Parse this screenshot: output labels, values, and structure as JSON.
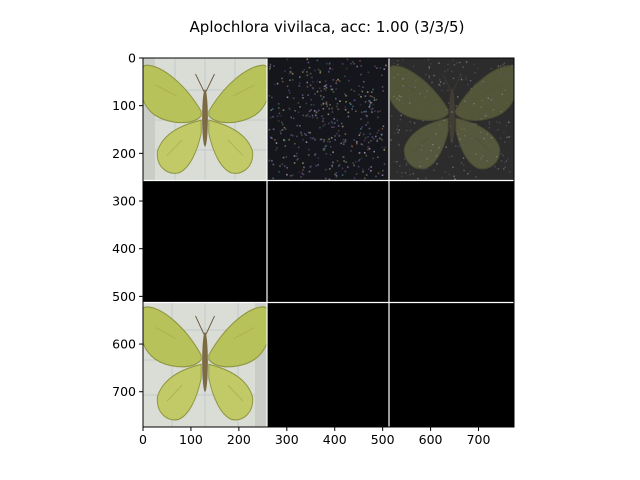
{
  "chart_data": {
    "type": "image-grid",
    "title": "Aplochlora vivilaca, acc: 1.00 (3/3/5)",
    "xlabel": "",
    "ylabel": "",
    "xlim": [
      0,
      774
    ],
    "ylim": [
      774,
      0
    ],
    "xticks": [
      0,
      100,
      200,
      300,
      400,
      500,
      600,
      700
    ],
    "yticks": [
      0,
      100,
      200,
      300,
      400,
      500,
      600,
      700
    ],
    "grid": {
      "rows": 3,
      "cols": 3,
      "cell_size": 256,
      "separator": 2,
      "separator_color": "#ffffff"
    },
    "tiles": [
      {
        "row": 0,
        "col": 0,
        "content": "butterfly-photo"
      },
      {
        "row": 0,
        "col": 1,
        "content": "noise-attribution"
      },
      {
        "row": 0,
        "col": 2,
        "content": "dim-overlay"
      },
      {
        "row": 1,
        "col": 0,
        "content": "black"
      },
      {
        "row": 1,
        "col": 1,
        "content": "black"
      },
      {
        "row": 1,
        "col": 2,
        "content": "black"
      },
      {
        "row": 2,
        "col": 0,
        "content": "butterfly-photo"
      },
      {
        "row": 2,
        "col": 1,
        "content": "black"
      },
      {
        "row": 2,
        "col": 2,
        "content": "black"
      }
    ]
  },
  "colors": {
    "wing": "#b8c25a",
    "wing_light": "#d4d98a",
    "background_tile": "#d9ddd6",
    "noise_bg": "#15151c",
    "overlay_bg": "#2c2c2c"
  }
}
